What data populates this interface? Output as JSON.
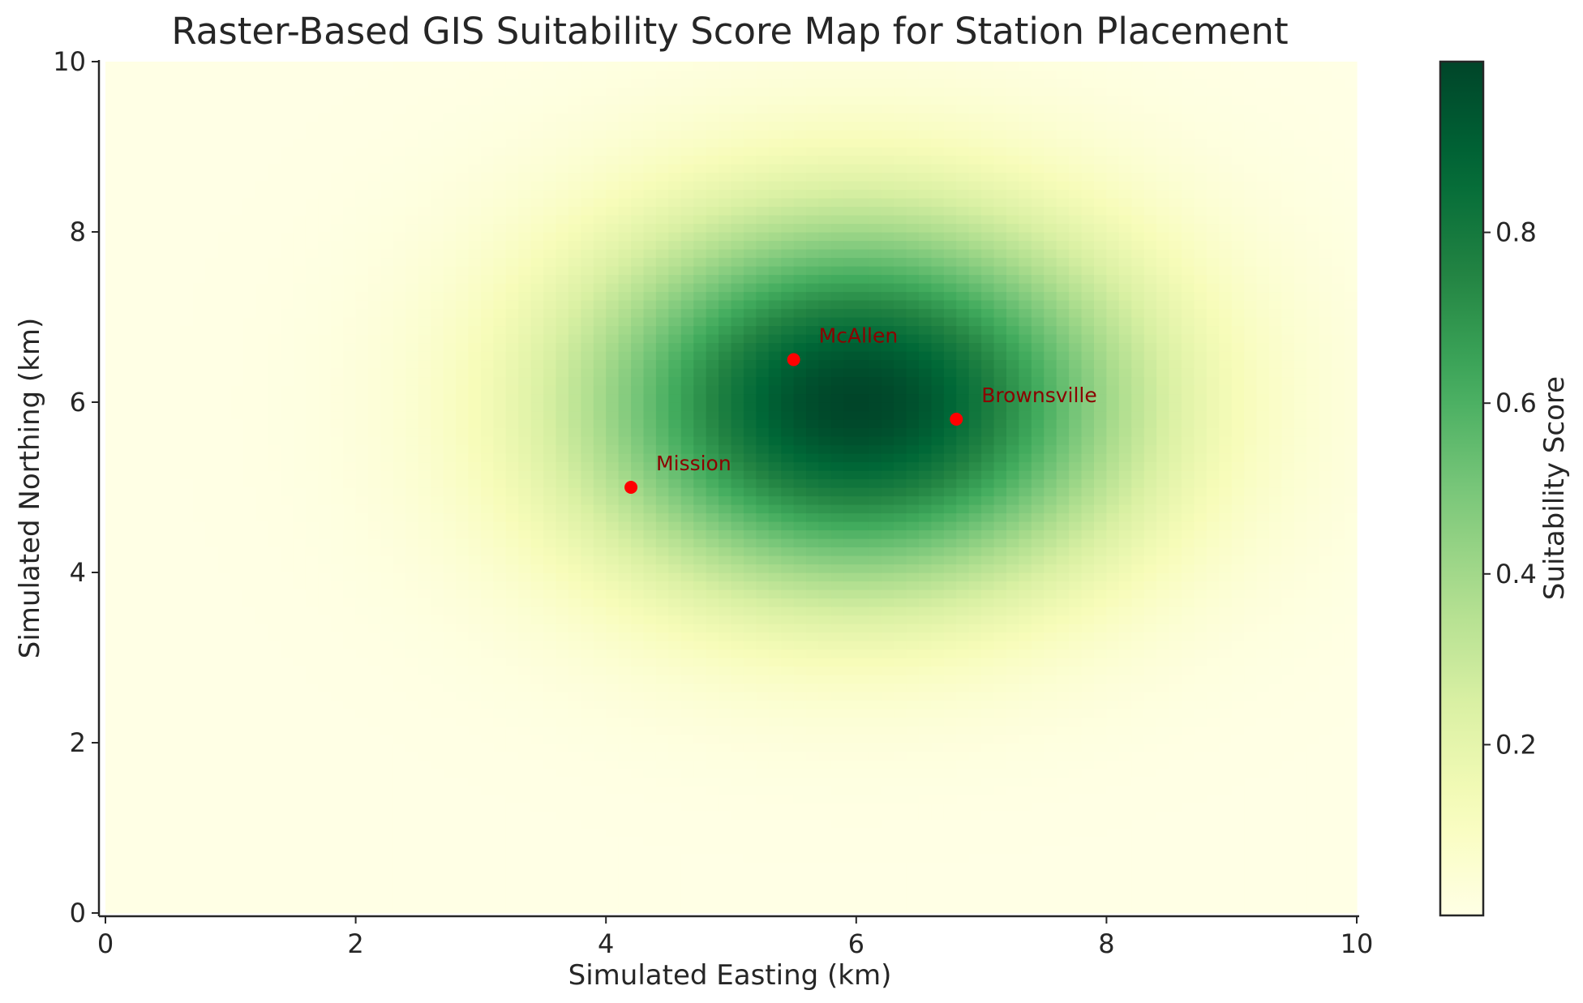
{
  "chart_data": {
    "type": "heatmap",
    "title": "Raster-Based GIS Suitability Score Map for Station Placement",
    "xlabel": "Simulated Easting (km)",
    "ylabel": "Simulated Northing (km)",
    "colorbar_label": "Suitability Score",
    "xlim": [
      0,
      10
    ],
    "ylim": [
      0,
      10
    ],
    "x_ticks": [
      "0",
      "2",
      "4",
      "6",
      "8",
      "10"
    ],
    "y_ticks": [
      "0",
      "2",
      "4",
      "6",
      "8",
      "10"
    ],
    "colorbar_ticks": [
      "0.2",
      "0.4",
      "0.6",
      "0.8"
    ],
    "colorbar_tick_values": [
      0.2,
      0.4,
      0.6,
      0.8
    ],
    "colorbar_range": [
      0.0,
      1.0
    ],
    "colormap": "YlGn",
    "grid": false,
    "surface": {
      "peak_x": 6,
      "peak_y": 6,
      "peak_value": 1.0,
      "sigma_x": 1.5,
      "sigma_y": 1.5
    },
    "points": [
      {
        "name": "McAllen",
        "x": 5.5,
        "y": 6.5
      },
      {
        "name": "Brownsville",
        "x": 6.8,
        "y": 5.8
      },
      {
        "name": "Mission",
        "x": 4.2,
        "y": 5.0
      }
    ],
    "marker_color": "#ff0000",
    "label_color": "#8b0000"
  }
}
